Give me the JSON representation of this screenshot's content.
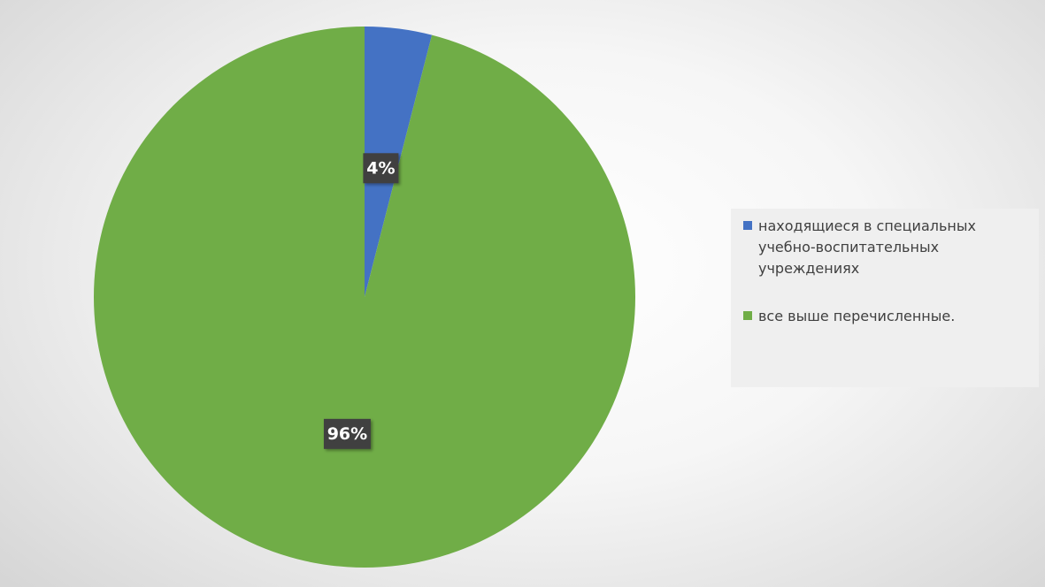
{
  "chart_data": {
    "type": "pie",
    "categories": [
      "находящиеся в специальных учебно-воспитательных учреждениях",
      "все выше перечисленные."
    ],
    "values": [
      4,
      96
    ],
    "data_labels": [
      "4%",
      "96%"
    ],
    "colors": [
      "#4472c4",
      "#70ad47"
    ],
    "legend_position": "right",
    "start_angle": "12 o'clock"
  },
  "legend": {
    "items": [
      {
        "label": "находящиеся в специальных учебно-воспитательных учреждениях",
        "color": "#4472c4"
      },
      {
        "label": "все выше перечисленные.",
        "color": "#70ad47"
      }
    ]
  },
  "style": {
    "label_box_color": "#404040",
    "label_text_color": "#ffffff"
  }
}
